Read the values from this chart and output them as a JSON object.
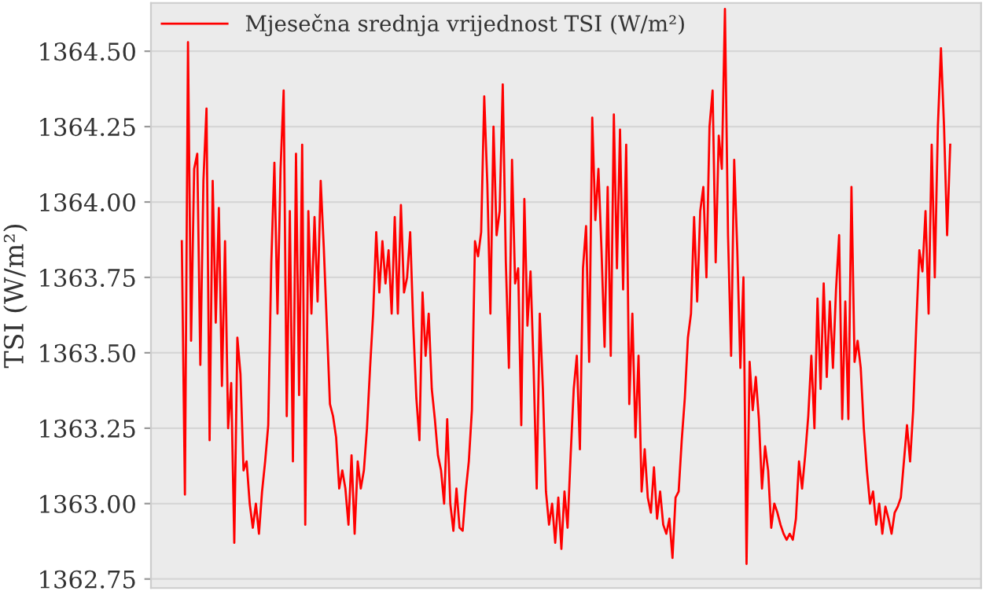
{
  "chart_data": {
    "type": "line",
    "ylabel": "TSI (W/m²)",
    "categories": [
      null,
      null,
      null,
      null,
      null,
      null,
      null,
      null,
      null,
      null,
      null,
      null,
      null,
      null,
      null,
      null,
      null,
      null,
      null,
      null,
      null,
      null,
      null,
      null,
      null,
      null,
      null,
      null,
      null,
      null,
      null,
      null,
      null,
      null,
      null,
      null,
      null,
      null,
      null,
      null,
      null,
      null,
      null,
      null,
      null,
      null,
      null,
      null,
      null,
      null,
      null,
      null,
      null,
      null,
      null,
      null,
      null,
      null,
      null,
      null,
      null,
      null,
      null,
      null,
      null,
      null,
      null,
      null,
      null,
      null,
      null,
      null,
      null,
      null,
      null,
      null,
      null,
      null,
      null,
      null,
      null,
      null,
      null,
      null,
      null,
      null,
      null,
      null,
      null,
      null,
      null,
      null,
      null,
      null,
      null,
      null,
      null,
      null,
      null,
      null,
      null,
      null,
      null,
      null,
      null,
      null,
      null,
      null,
      null,
      null,
      null,
      null,
      null,
      null,
      null,
      null,
      null,
      null,
      null,
      null,
      null,
      null,
      null,
      null,
      null,
      null,
      null,
      null,
      null,
      null,
      null,
      null,
      null,
      null,
      null,
      null,
      null,
      null,
      null,
      null,
      null,
      null,
      null,
      null,
      null,
      null,
      null,
      null,
      null,
      null,
      null,
      null,
      null,
      null,
      null,
      null,
      null,
      null,
      null,
      null,
      null,
      null,
      null,
      null,
      null,
      null,
      null,
      null,
      null,
      null,
      null,
      null,
      null,
      null,
      null,
      null,
      null,
      null,
      null,
      null,
      null,
      null,
      null,
      null,
      null,
      null,
      null,
      null,
      null,
      null,
      null,
      null,
      null,
      null,
      null,
      null,
      null,
      null,
      null,
      null,
      null,
      null,
      null,
      null,
      null,
      null,
      null,
      null,
      null,
      null,
      null,
      null,
      null,
      null,
      null,
      null,
      null,
      null,
      null,
      null,
      null,
      null,
      null,
      null,
      null,
      null,
      null,
      null,
      null,
      null,
      null,
      null,
      null,
      null,
      null,
      null,
      null,
      null,
      null,
      null,
      null,
      null,
      null,
      null,
      null,
      null,
      null,
      null,
      null,
      null
    ],
    "ylim": [
      1362.72,
      1364.66
    ],
    "yticks": [
      {
        "value": 1362.75,
        "label": "1362.75"
      },
      {
        "value": 1363.0,
        "label": "1363.00"
      },
      {
        "value": 1363.25,
        "label": "1363.25"
      },
      {
        "value": 1363.5,
        "label": "1363.50"
      },
      {
        "value": 1363.75,
        "label": "1363.75"
      },
      {
        "value": 1364.0,
        "label": "1364.00"
      },
      {
        "value": 1364.25,
        "label": "1364.25"
      },
      {
        "value": 1364.5,
        "label": "1364.50"
      }
    ],
    "tick_labels": "y",
    "grid": "y",
    "legend": "top left",
    "marker": "none",
    "line_style": "solid",
    "series": [
      {
        "name": "Mjesečna srednja vrijednost TSI (W/m²)",
        "color": "#ff0000",
        "values": [
          1363.87,
          1363.03,
          1364.53,
          1363.54,
          1364.11,
          1364.16,
          1363.46,
          1364.07,
          1364.31,
          1363.21,
          1364.07,
          1363.6,
          1363.98,
          1363.39,
          1363.87,
          1363.25,
          1363.4,
          1362.87,
          1363.55,
          1363.43,
          1363.11,
          1363.14,
          1363.0,
          1362.92,
          1363.0,
          1362.9,
          1363.04,
          1363.14,
          1363.26,
          1363.8,
          1364.13,
          1363.63,
          1364.11,
          1364.37,
          1363.29,
          1363.97,
          1363.14,
          1364.16,
          1363.36,
          1364.19,
          1362.93,
          1363.97,
          1363.63,
          1363.95,
          1363.67,
          1364.07,
          1363.85,
          1363.59,
          1363.33,
          1363.29,
          1363.22,
          1363.05,
          1363.11,
          1363.05,
          1362.93,
          1363.16,
          1362.9,
          1363.14,
          1363.05,
          1363.11,
          1363.25,
          1363.45,
          1363.63,
          1363.9,
          1363.7,
          1363.87,
          1363.73,
          1363.84,
          1363.63,
          1363.95,
          1363.63,
          1363.99,
          1363.7,
          1363.75,
          1363.9,
          1363.59,
          1363.35,
          1363.21,
          1363.7,
          1363.49,
          1363.63,
          1363.38,
          1363.28,
          1363.16,
          1363.11,
          1363.0,
          1363.28,
          1363.0,
          1362.91,
          1363.05,
          1362.92,
          1362.91,
          1363.04,
          1363.14,
          1363.31,
          1363.87,
          1363.82,
          1363.9,
          1364.35,
          1364.06,
          1363.63,
          1364.25,
          1363.89,
          1363.97,
          1364.39,
          1363.8,
          1363.45,
          1364.14,
          1363.73,
          1363.78,
          1363.26,
          1364.01,
          1363.59,
          1363.77,
          1363.45,
          1363.05,
          1363.63,
          1363.38,
          1363.04,
          1362.93,
          1363.0,
          1362.87,
          1363.02,
          1362.85,
          1363.04,
          1362.92,
          1363.16,
          1363.38,
          1363.49,
          1363.18,
          1363.78,
          1363.92,
          1363.47,
          1364.28,
          1363.94,
          1364.11,
          1363.84,
          1363.52,
          1364.05,
          1363.49,
          1364.29,
          1363.78,
          1364.24,
          1363.71,
          1364.19,
          1363.33,
          1363.63,
          1363.22,
          1363.49,
          1363.04,
          1363.18,
          1363.02,
          1362.97,
          1363.12,
          1362.95,
          1363.04,
          1362.93,
          1362.9,
          1362.95,
          1362.82,
          1363.02,
          1363.04,
          1363.21,
          1363.35,
          1363.55,
          1363.63,
          1363.95,
          1363.67,
          1363.97,
          1364.05,
          1363.75,
          1364.25,
          1364.37,
          1363.8,
          1364.22,
          1364.11,
          1364.64,
          1363.89,
          1363.49,
          1364.14,
          1363.84,
          1363.45,
          1363.75,
          1362.8,
          1363.47,
          1363.31,
          1363.42,
          1363.28,
          1363.05,
          1363.19,
          1363.11,
          1362.92,
          1363.0,
          1362.97,
          1362.93,
          1362.9,
          1362.88,
          1362.9,
          1362.88,
          1362.95,
          1363.14,
          1363.05,
          1363.16,
          1363.29,
          1363.49,
          1363.25,
          1363.68,
          1363.38,
          1363.73,
          1363.42,
          1363.67,
          1363.45,
          1363.71,
          1363.89,
          1363.28,
          1363.67,
          1363.28,
          1364.05,
          1363.47,
          1363.54,
          1363.45,
          1363.25,
          1363.11,
          1363.0,
          1363.04,
          1362.93,
          1363.0,
          1362.9,
          1362.99,
          1362.95,
          1362.9,
          1362.97,
          1362.99,
          1363.02,
          1363.14,
          1363.26,
          1363.14,
          1363.31,
          1363.59,
          1363.84,
          1363.77,
          1363.97,
          1363.63,
          1364.19,
          1363.75,
          1364.25,
          1364.51,
          1364.25,
          1363.89,
          1364.19
        ]
      }
    ]
  }
}
